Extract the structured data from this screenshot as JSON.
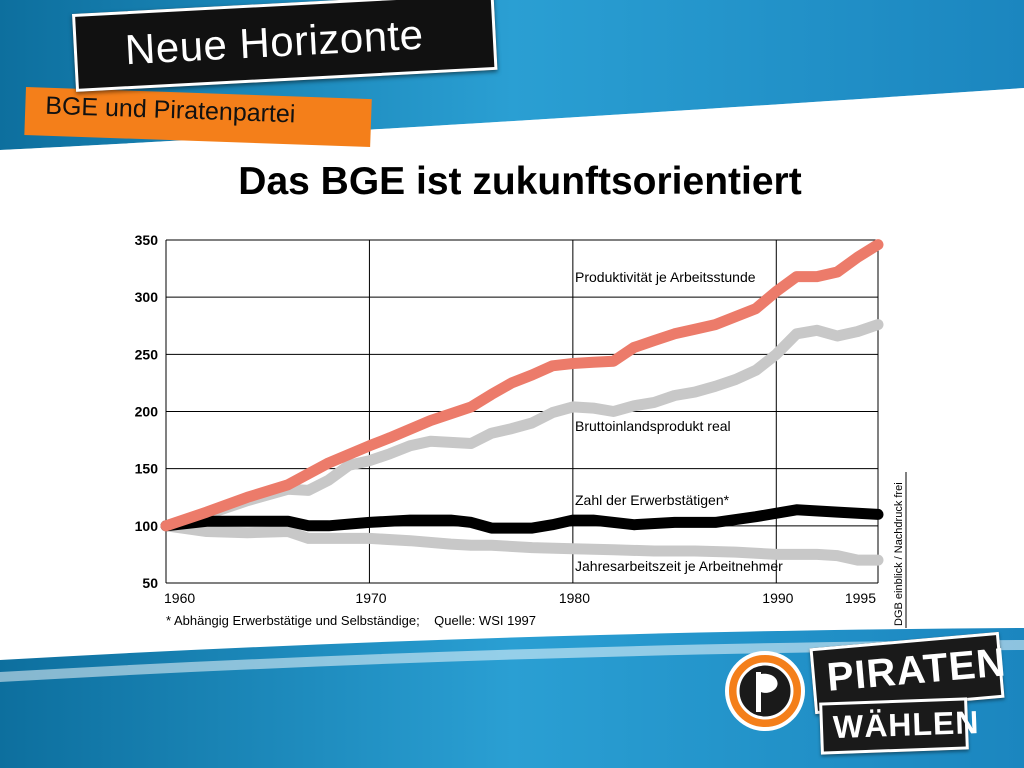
{
  "slide": {
    "banner_title": "Neue Horizonte",
    "banner_subtitle": "BGE und Piratenpartei",
    "title": "Das BGE ist zukunftsorientiert"
  },
  "logo": {
    "line1": "PIRATEN",
    "line2": "WÄHLEN",
    "accent_color": "#f47f1a",
    "icon": "pirate-sail-icon"
  },
  "colors": {
    "blue_band": "#1f8fc4",
    "orange": "#f47f1a",
    "productivity": "#ec7b6a",
    "gdp": "#c8c8c8",
    "employed": "#000000",
    "hours": "#c8c8c8"
  },
  "chart_data": {
    "type": "line",
    "xlim": [
      1960,
      1995
    ],
    "ylim": [
      50,
      350
    ],
    "x_ticks": [
      "1960",
      "1970",
      "1980",
      "1990",
      "1995"
    ],
    "y_ticks": [
      "50",
      "100",
      "150",
      "200",
      "250",
      "300",
      "350"
    ],
    "grid": true,
    "footnote": "* Abhängig Erwerbstätige und Selbständige;    Quelle: WSI 1997",
    "side_note": "DGB einblick / Nachdruck frei",
    "series": [
      {
        "name": "Produktivität je Arbeitsstunde",
        "color": "#ec7b6a",
        "x": [
          1960,
          1962,
          1964,
          1966,
          1968,
          1970,
          1971,
          1973,
          1975,
          1976,
          1977,
          1978,
          1979,
          1980,
          1981,
          1982,
          1983,
          1984,
          1985,
          1986,
          1987,
          1988,
          1989,
          1990,
          1991,
          1992,
          1993,
          1994,
          1995
        ],
        "y": [
          100,
          112,
          125,
          136,
          155,
          170,
          177,
          192,
          204,
          215,
          225,
          232,
          240,
          242,
          243,
          244,
          256,
          262,
          268,
          272,
          276,
          283,
          290,
          305,
          318,
          318,
          322,
          335,
          346
        ]
      },
      {
        "name": "Bruttoinlandsprodukt real",
        "color": "#c8c8c8",
        "x": [
          1960,
          1962,
          1964,
          1966,
          1967,
          1968,
          1969,
          1970,
          1971,
          1972,
          1973,
          1975,
          1976,
          1977,
          1978,
          1979,
          1980,
          1981,
          1982,
          1983,
          1984,
          1985,
          1986,
          1987,
          1988,
          1989,
          1990,
          1991,
          1992,
          1993,
          1994,
          1995
        ],
        "y": [
          100,
          110,
          122,
          132,
          131,
          140,
          153,
          157,
          163,
          170,
          174,
          172,
          181,
          185,
          190,
          199,
          204,
          203,
          200,
          205,
          208,
          214,
          217,
          222,
          228,
          236,
          250,
          268,
          271,
          266,
          270,
          276
        ]
      },
      {
        "name": "Zahl der Erwerbstätigen*",
        "color": "#000000",
        "x": [
          1960,
          1962,
          1964,
          1966,
          1967,
          1968,
          1970,
          1972,
          1974,
          1975,
          1976,
          1978,
          1979,
          1980,
          1981,
          1983,
          1985,
          1987,
          1989,
          1991,
          1993,
          1995
        ],
        "y": [
          100,
          104,
          104,
          104,
          100,
          100,
          103,
          105,
          105,
          103,
          98,
          98,
          101,
          105,
          105,
          101,
          103,
          103,
          108,
          114,
          112,
          110
        ]
      },
      {
        "name": "Jahresarbeitszeit je Arbeitnehmer",
        "color": "#c8c8c8",
        "x": [
          1960,
          1962,
          1964,
          1966,
          1967,
          1970,
          1972,
          1974,
          1975,
          1976,
          1978,
          1980,
          1982,
          1984,
          1986,
          1988,
          1990,
          1992,
          1993,
          1994,
          1995
        ],
        "y": [
          100,
          95,
          94,
          95,
          89,
          89,
          87,
          84,
          83,
          83,
          81,
          80,
          79,
          78,
          78,
          77,
          75,
          75,
          74,
          70,
          70
        ]
      }
    ],
    "series_label_positions": "right-inline"
  }
}
